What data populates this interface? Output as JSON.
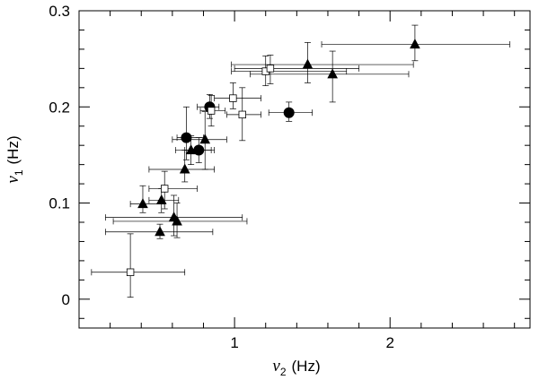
{
  "chart_data": {
    "type": "scatter",
    "title": "",
    "xlabel_main": "ν",
    "xlabel_sub": "2",
    "xlabel_unit": "(Hz)",
    "ylabel_main": "ν",
    "ylabel_sub": "1",
    "ylabel_unit": "(Hz)",
    "xlim": [
      0,
      2.9
    ],
    "ylim": [
      -0.03,
      0.3
    ],
    "xticks_major": [
      1,
      2
    ],
    "xticks_minor": [
      0.2,
      0.4,
      0.6,
      0.8,
      1.2,
      1.4,
      1.6,
      1.8,
      2.2,
      2.4,
      2.6,
      2.8
    ],
    "yticks_major": [
      0,
      0.1,
      0.2,
      0.3
    ],
    "yticks_minor": [
      -0.02,
      0.02,
      0.04,
      0.06,
      0.08,
      0.12,
      0.14,
      0.16,
      0.18,
      0.22,
      0.24,
      0.26,
      0.28
    ],
    "xtick_labels": [
      "1",
      "2"
    ],
    "ytick_labels": [
      "0",
      "0.1",
      "0.2",
      "0.3"
    ],
    "series": [
      {
        "marker": "triangle",
        "points": [
          {
            "x": 0.41,
            "y": 0.099,
            "xlo": 0.33,
            "xhi": 0.55,
            "ylo": 0.09,
            "yhi": 0.118
          },
          {
            "x": 0.52,
            "y": 0.07,
            "xlo": 0.17,
            "xhi": 0.86,
            "ylo": 0.063,
            "yhi": 0.078
          },
          {
            "x": 0.53,
            "y": 0.103,
            "xlo": 0.45,
            "xhi": 0.64,
            "ylo": 0.09,
            "yhi": 0.115
          },
          {
            "x": 0.61,
            "y": 0.085,
            "xlo": 0.17,
            "xhi": 1.05,
            "ylo": 0.066,
            "yhi": 0.108
          },
          {
            "x": 0.63,
            "y": 0.081,
            "xlo": 0.22,
            "xhi": 1.08,
            "ylo": 0.064,
            "yhi": 0.1
          },
          {
            "x": 0.68,
            "y": 0.135,
            "xlo": 0.45,
            "xhi": 0.87,
            "ylo": 0.122,
            "yhi": 0.155
          },
          {
            "x": 0.72,
            "y": 0.155,
            "xlo": 0.62,
            "xhi": 0.85,
            "ylo": 0.14,
            "yhi": 0.17
          },
          {
            "x": 0.81,
            "y": 0.166,
            "xlo": 0.6,
            "xhi": 0.95,
            "ylo": 0.135,
            "yhi": 0.195
          },
          {
            "x": 1.47,
            "y": 0.244,
            "xlo": 0.98,
            "xhi": 2.15,
            "ylo": 0.225,
            "yhi": 0.267
          },
          {
            "x": 1.63,
            "y": 0.234,
            "xlo": 1.1,
            "xhi": 2.12,
            "ylo": 0.205,
            "yhi": 0.258
          },
          {
            "x": 2.16,
            "y": 0.265,
            "xlo": 1.56,
            "xhi": 2.77,
            "ylo": 0.248,
            "yhi": 0.285
          }
        ]
      },
      {
        "marker": "circle",
        "points": [
          {
            "x": 0.69,
            "y": 0.168,
            "xlo": 0.63,
            "xhi": 0.8,
            "ylo": 0.145,
            "yhi": 0.2
          },
          {
            "x": 0.77,
            "y": 0.155,
            "xlo": 0.68,
            "xhi": 0.87,
            "ylo": 0.142,
            "yhi": 0.168
          },
          {
            "x": 0.84,
            "y": 0.2,
            "xlo": 0.76,
            "xhi": 0.9,
            "ylo": 0.188,
            "yhi": 0.213
          },
          {
            "x": 1.35,
            "y": 0.194,
            "xlo": 1.22,
            "xhi": 1.5,
            "ylo": 0.185,
            "yhi": 0.205
          }
        ]
      },
      {
        "marker": "square",
        "points": [
          {
            "x": 0.33,
            "y": 0.028,
            "xlo": 0.08,
            "xhi": 0.68,
            "ylo": 0.002,
            "yhi": 0.068
          },
          {
            "x": 0.55,
            "y": 0.115,
            "xlo": 0.45,
            "xhi": 0.76,
            "ylo": 0.094,
            "yhi": 0.133
          },
          {
            "x": 0.85,
            "y": 0.196,
            "xlo": 0.78,
            "xhi": 0.94,
            "ylo": 0.18,
            "yhi": 0.212
          },
          {
            "x": 0.99,
            "y": 0.209,
            "xlo": 0.87,
            "xhi": 1.17,
            "ylo": 0.198,
            "yhi": 0.225
          },
          {
            "x": 1.05,
            "y": 0.192,
            "xlo": 0.95,
            "xhi": 1.17,
            "ylo": 0.165,
            "yhi": 0.22
          },
          {
            "x": 1.2,
            "y": 0.237,
            "xlo": 0.98,
            "xhi": 1.72,
            "ylo": 0.222,
            "yhi": 0.253
          },
          {
            "x": 1.23,
            "y": 0.24,
            "xlo": 1.0,
            "xhi": 1.8,
            "ylo": 0.224,
            "yhi": 0.254
          }
        ]
      }
    ]
  }
}
